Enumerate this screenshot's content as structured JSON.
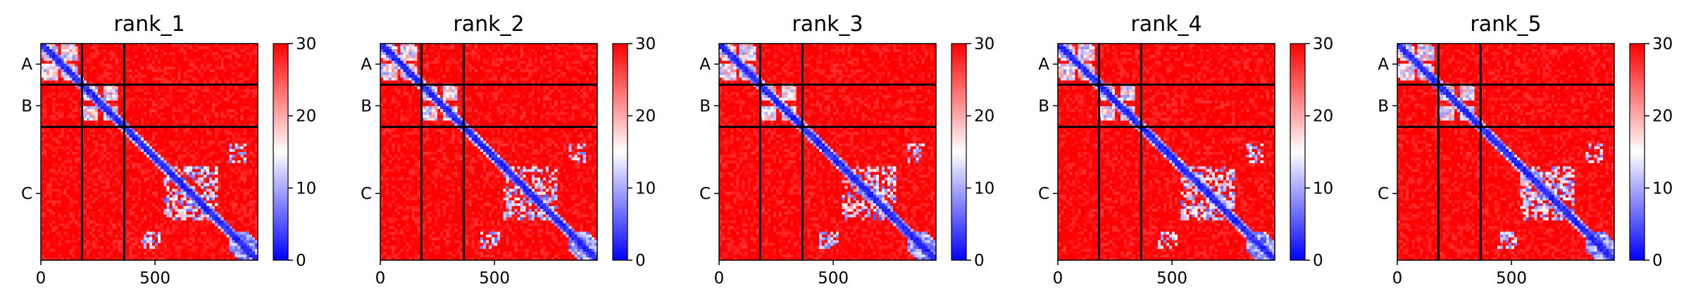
{
  "figure": {
    "colorbar_colors": [
      "#0000ff",
      "#ffffff",
      "#ff0000"
    ],
    "chain_line_color": "#000000"
  },
  "chart_data": [
    {
      "type": "heatmap",
      "title": "rank_1",
      "xticks": [
        0,
        500
      ],
      "xlim": [
        0,
        950
      ],
      "chain_boundaries": [
        180,
        365
      ],
      "chain_labels": [
        "A",
        "B",
        "C"
      ],
      "colorbar": {
        "min": 0,
        "max": 30,
        "ticks": [
          0,
          10,
          20,
          30
        ]
      }
    },
    {
      "type": "heatmap",
      "title": "rank_2",
      "xticks": [
        0,
        500
      ],
      "xlim": [
        0,
        950
      ],
      "chain_boundaries": [
        180,
        365
      ],
      "chain_labels": [
        "A",
        "B",
        "C"
      ],
      "colorbar": {
        "min": 0,
        "max": 30,
        "ticks": [
          0,
          10,
          20,
          30
        ]
      }
    },
    {
      "type": "heatmap",
      "title": "rank_3",
      "xticks": [
        0,
        500
      ],
      "xlim": [
        0,
        950
      ],
      "chain_boundaries": [
        180,
        365
      ],
      "chain_labels": [
        "A",
        "B",
        "C"
      ],
      "colorbar": {
        "min": 0,
        "max": 30,
        "ticks": [
          0,
          10,
          20,
          30
        ]
      }
    },
    {
      "type": "heatmap",
      "title": "rank_4",
      "xticks": [
        0,
        500
      ],
      "xlim": [
        0,
        950
      ],
      "chain_boundaries": [
        180,
        365
      ],
      "chain_labels": [
        "A",
        "B",
        "C"
      ],
      "colorbar": {
        "min": 0,
        "max": 30,
        "ticks": [
          0,
          10,
          20,
          30
        ]
      }
    },
    {
      "type": "heatmap",
      "title": "rank_5",
      "xticks": [
        0,
        500
      ],
      "xlim": [
        0,
        950
      ],
      "chain_boundaries": [
        180,
        365
      ],
      "chain_labels": [
        "A",
        "B",
        "C"
      ],
      "colorbar": {
        "min": 0,
        "max": 30,
        "ticks": [
          0,
          10,
          20,
          30
        ]
      }
    }
  ]
}
